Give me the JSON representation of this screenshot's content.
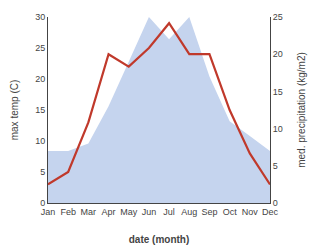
{
  "chart_data": {
    "type": "line",
    "xlabel": "date (month)",
    "ylabel": "max temp (C)",
    "y2label": "med. precipitation (kg/m2)",
    "categories": [
      "Jan",
      "Feb",
      "Mar",
      "Apr",
      "May",
      "Jun",
      "Jul",
      "Aug",
      "Sep",
      "Oct",
      "Nov",
      "Dec"
    ],
    "series": [
      {
        "type": "line",
        "color": "#c0392b",
        "values": [
          3,
          5,
          13,
          24,
          22,
          25,
          29,
          24,
          24,
          15,
          8,
          3
        ]
      },
      {
        "type": "area",
        "color": "#c5d4ee",
        "axis": "y2",
        "values": [
          7,
          7,
          8,
          13,
          19,
          25,
          22,
          25,
          17,
          11,
          9,
          7
        ]
      }
    ],
    "ylim": [
      0,
      30
    ],
    "yticks": [
      0,
      5,
      10,
      15,
      20,
      25,
      30
    ],
    "y2lim": [
      0,
      25
    ],
    "y2ticks": [
      0,
      5,
      10,
      15,
      20,
      25
    ],
    "grid": false
  }
}
